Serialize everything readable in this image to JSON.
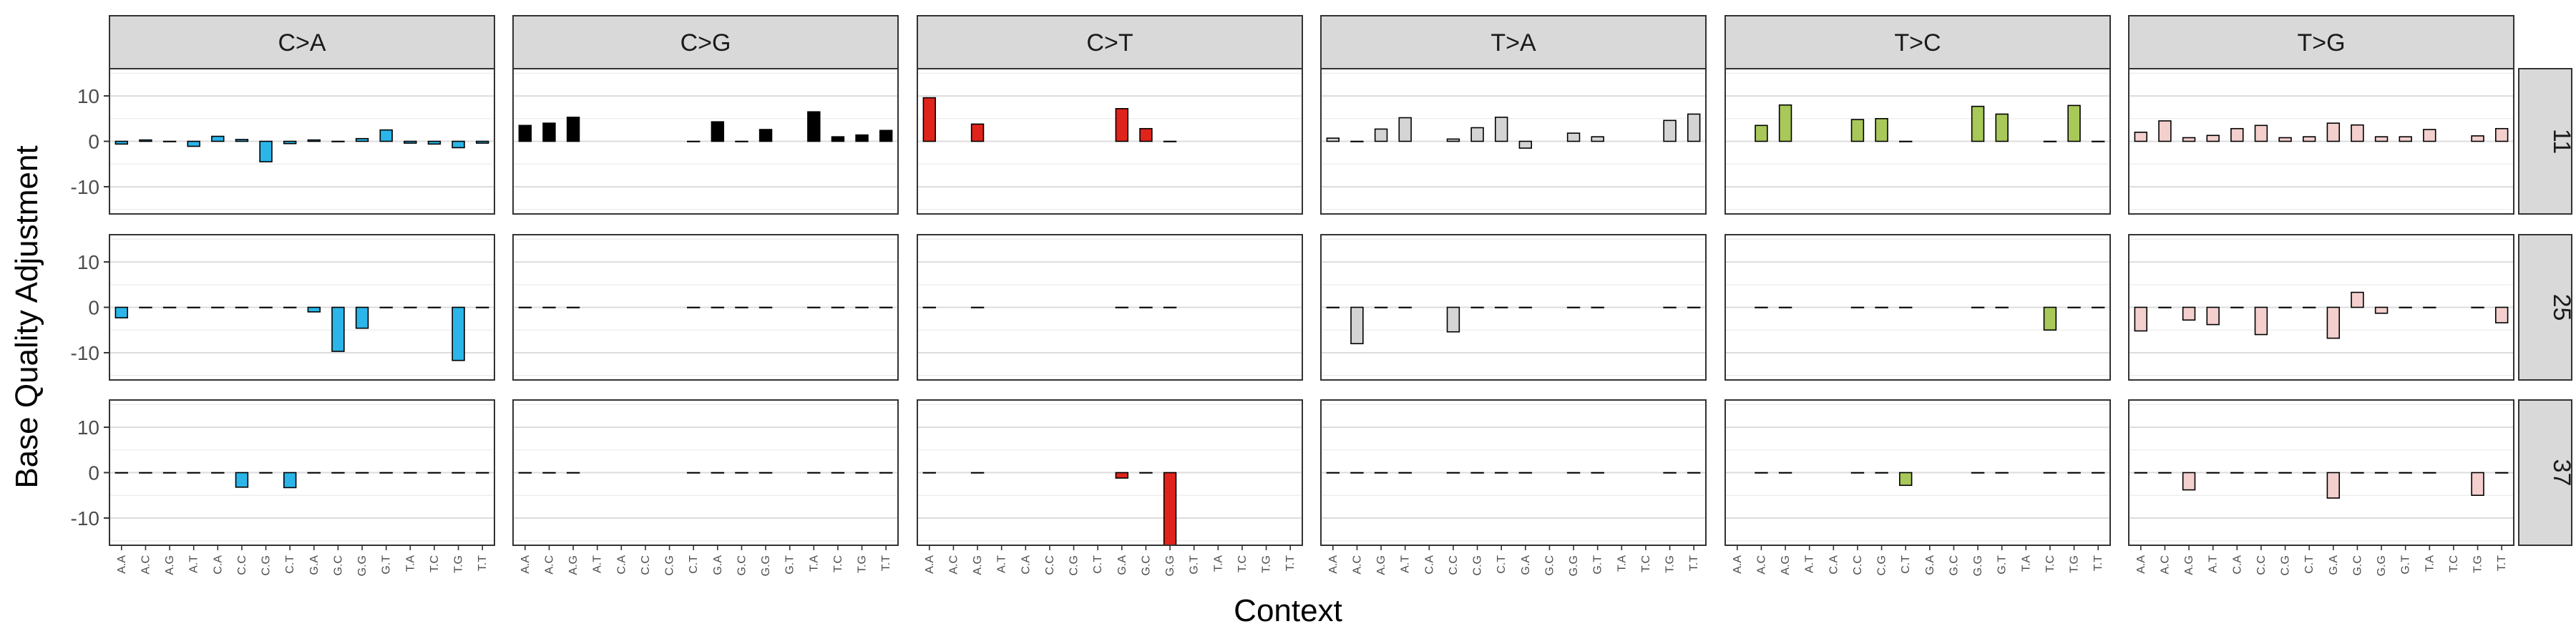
{
  "chart_data": {
    "type": "bar",
    "title": "",
    "xlabel": "Context",
    "ylabel": "Base Quality Adjustment",
    "ylim": [
      -16,
      16
    ],
    "y_ticks": [
      10,
      0,
      -10
    ],
    "y_tick_labels": [
      "10",
      "0",
      "-10"
    ],
    "grid": true,
    "legend": "none",
    "facet_cols": [
      "C>A",
      "C>G",
      "C>T",
      "T>A",
      "T>C",
      "T>G"
    ],
    "facet_rows": [
      "11",
      "25",
      "37"
    ],
    "categories": [
      "A.A",
      "A.C",
      "A.G",
      "A.T",
      "C.A",
      "C.C",
      "C.G",
      "C.T",
      "G.A",
      "G.C",
      "G.G",
      "G.T",
      "T.A",
      "T.C",
      "T.G",
      "T.T"
    ],
    "colors": {
      "C>A": "#2bb5e8",
      "C>G": "#000000",
      "C>T": "#e0241b",
      "T>A": "#d4d4d4",
      "T>C": "#a8c85a",
      "T>G": "#f3cfcd"
    },
    "panels": [
      {
        "row": "11",
        "col": "C>A",
        "values": [
          -0.6,
          0.3,
          0,
          -1.1,
          1.1,
          0.4,
          -4.5,
          -0.5,
          0.3,
          0,
          0.6,
          2.5,
          -0.4,
          -0.6,
          -1.4,
          -0.4
        ]
      },
      {
        "row": "11",
        "col": "C>G",
        "values": [
          3.5,
          4,
          5.3,
          null,
          null,
          null,
          null,
          0,
          4.3,
          0,
          2.6,
          null,
          6.5,
          1,
          1.4,
          2.4
        ]
      },
      {
        "row": "11",
        "col": "C>T",
        "values": [
          9.6,
          null,
          3.8,
          null,
          null,
          null,
          null,
          null,
          7.2,
          2.8,
          0,
          null,
          null,
          null,
          null,
          null
        ]
      },
      {
        "row": "11",
        "col": "T>A",
        "values": [
          0.7,
          0,
          2.7,
          5.2,
          null,
          0.5,
          3,
          5.3,
          -1.5,
          null,
          1.8,
          1,
          null,
          null,
          4.6,
          6
        ]
      },
      {
        "row": "11",
        "col": "T>C",
        "values": [
          null,
          3.5,
          8,
          null,
          null,
          4.8,
          5,
          0,
          null,
          null,
          7.7,
          6,
          null,
          0,
          7.9,
          0
        ]
      },
      {
        "row": "11",
        "col": "T>G",
        "values": [
          2,
          4.5,
          0.8,
          1.3,
          2.8,
          3.5,
          0.8,
          1,
          4,
          3.6,
          1,
          1,
          2.6,
          null,
          1.2,
          2.8
        ]
      },
      {
        "row": "25",
        "col": "C>A",
        "values": [
          -2.3,
          0,
          0,
          0,
          0,
          0,
          0,
          0,
          -1,
          -9.7,
          -4.6,
          0,
          0,
          0,
          -11.7,
          0
        ]
      },
      {
        "row": "25",
        "col": "C>G",
        "values": [
          0,
          0,
          0,
          null,
          null,
          null,
          null,
          0,
          0,
          0,
          0,
          null,
          0,
          0,
          0,
          0
        ]
      },
      {
        "row": "25",
        "col": "C>T",
        "values": [
          0,
          null,
          0,
          null,
          null,
          null,
          null,
          null,
          0,
          0,
          0,
          null,
          null,
          null,
          null,
          null
        ]
      },
      {
        "row": "25",
        "col": "T>A",
        "values": [
          0,
          -8,
          0,
          0,
          null,
          -5.4,
          0,
          0,
          0,
          null,
          0,
          0,
          null,
          null,
          0,
          0
        ]
      },
      {
        "row": "25",
        "col": "T>C",
        "values": [
          null,
          0,
          0,
          null,
          null,
          0,
          0,
          0,
          null,
          null,
          0,
          0,
          null,
          -5,
          0,
          0
        ]
      },
      {
        "row": "25",
        "col": "T>G",
        "values": [
          -5.2,
          0,
          -2.8,
          -3.8,
          0,
          -6,
          0,
          0,
          -6.8,
          3.3,
          -1.3,
          0,
          0,
          null,
          0,
          -3.4
        ]
      },
      {
        "row": "37",
        "col": "C>A",
        "values": [
          0,
          0,
          0,
          0,
          0,
          -3.2,
          0,
          -3.3,
          0,
          0,
          0,
          0,
          0,
          0,
          0,
          0
        ]
      },
      {
        "row": "37",
        "col": "C>G",
        "values": [
          0,
          0,
          0,
          null,
          null,
          null,
          null,
          0,
          0,
          0,
          0,
          null,
          0,
          0,
          0,
          0
        ]
      },
      {
        "row": "37",
        "col": "C>T",
        "values": [
          0,
          null,
          0,
          null,
          null,
          null,
          null,
          null,
          -1.2,
          0,
          -16,
          null,
          null,
          null,
          null,
          null
        ]
      },
      {
        "row": "37",
        "col": "T>A",
        "values": [
          0,
          0,
          0,
          0,
          null,
          0,
          0,
          0,
          0,
          null,
          0,
          0,
          null,
          null,
          0,
          0
        ]
      },
      {
        "row": "37",
        "col": "T>C",
        "values": [
          null,
          0,
          0,
          null,
          null,
          0,
          0,
          -2.8,
          null,
          null,
          0,
          0,
          null,
          0,
          0,
          0
        ]
      },
      {
        "row": "37",
        "col": "T>G",
        "values": [
          0,
          0,
          -3.8,
          0,
          0,
          0,
          0,
          0,
          -5.6,
          0,
          0,
          0,
          0,
          null,
          -5,
          0
        ]
      }
    ]
  }
}
